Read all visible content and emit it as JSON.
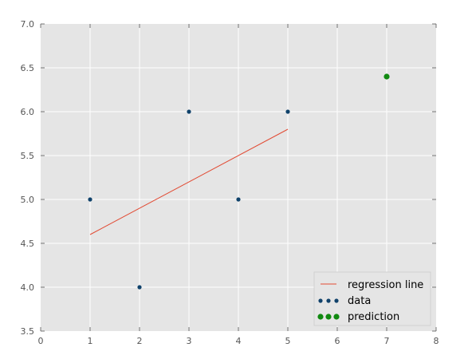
{
  "chart_data": {
    "type": "scatter",
    "title": "",
    "xlabel": "",
    "ylabel": "",
    "xlim": [
      0,
      8
    ],
    "ylim": [
      3.5,
      7.0
    ],
    "grid": true,
    "x_ticks": [
      "0",
      "1",
      "2",
      "3",
      "4",
      "5",
      "6",
      "7",
      "8"
    ],
    "y_ticks": [
      "3.5",
      "4.0",
      "4.5",
      "5.0",
      "5.5",
      "6.0",
      "6.5",
      "7.0"
    ],
    "legend_position": "lower-right",
    "series": [
      {
        "name": "regression line",
        "kind": "line",
        "color": "#e24a33",
        "x": [
          1,
          5
        ],
        "y": [
          4.6,
          5.8
        ]
      },
      {
        "name": "data",
        "kind": "scatter",
        "color": "#10426b",
        "x": [
          1,
          2,
          3,
          4,
          5
        ],
        "y": [
          5.0,
          4.0,
          6.0,
          5.0,
          6.0
        ]
      },
      {
        "name": "prediction",
        "kind": "scatter",
        "color": "#118a11",
        "x": [
          7
        ],
        "y": [
          6.4
        ]
      }
    ]
  }
}
